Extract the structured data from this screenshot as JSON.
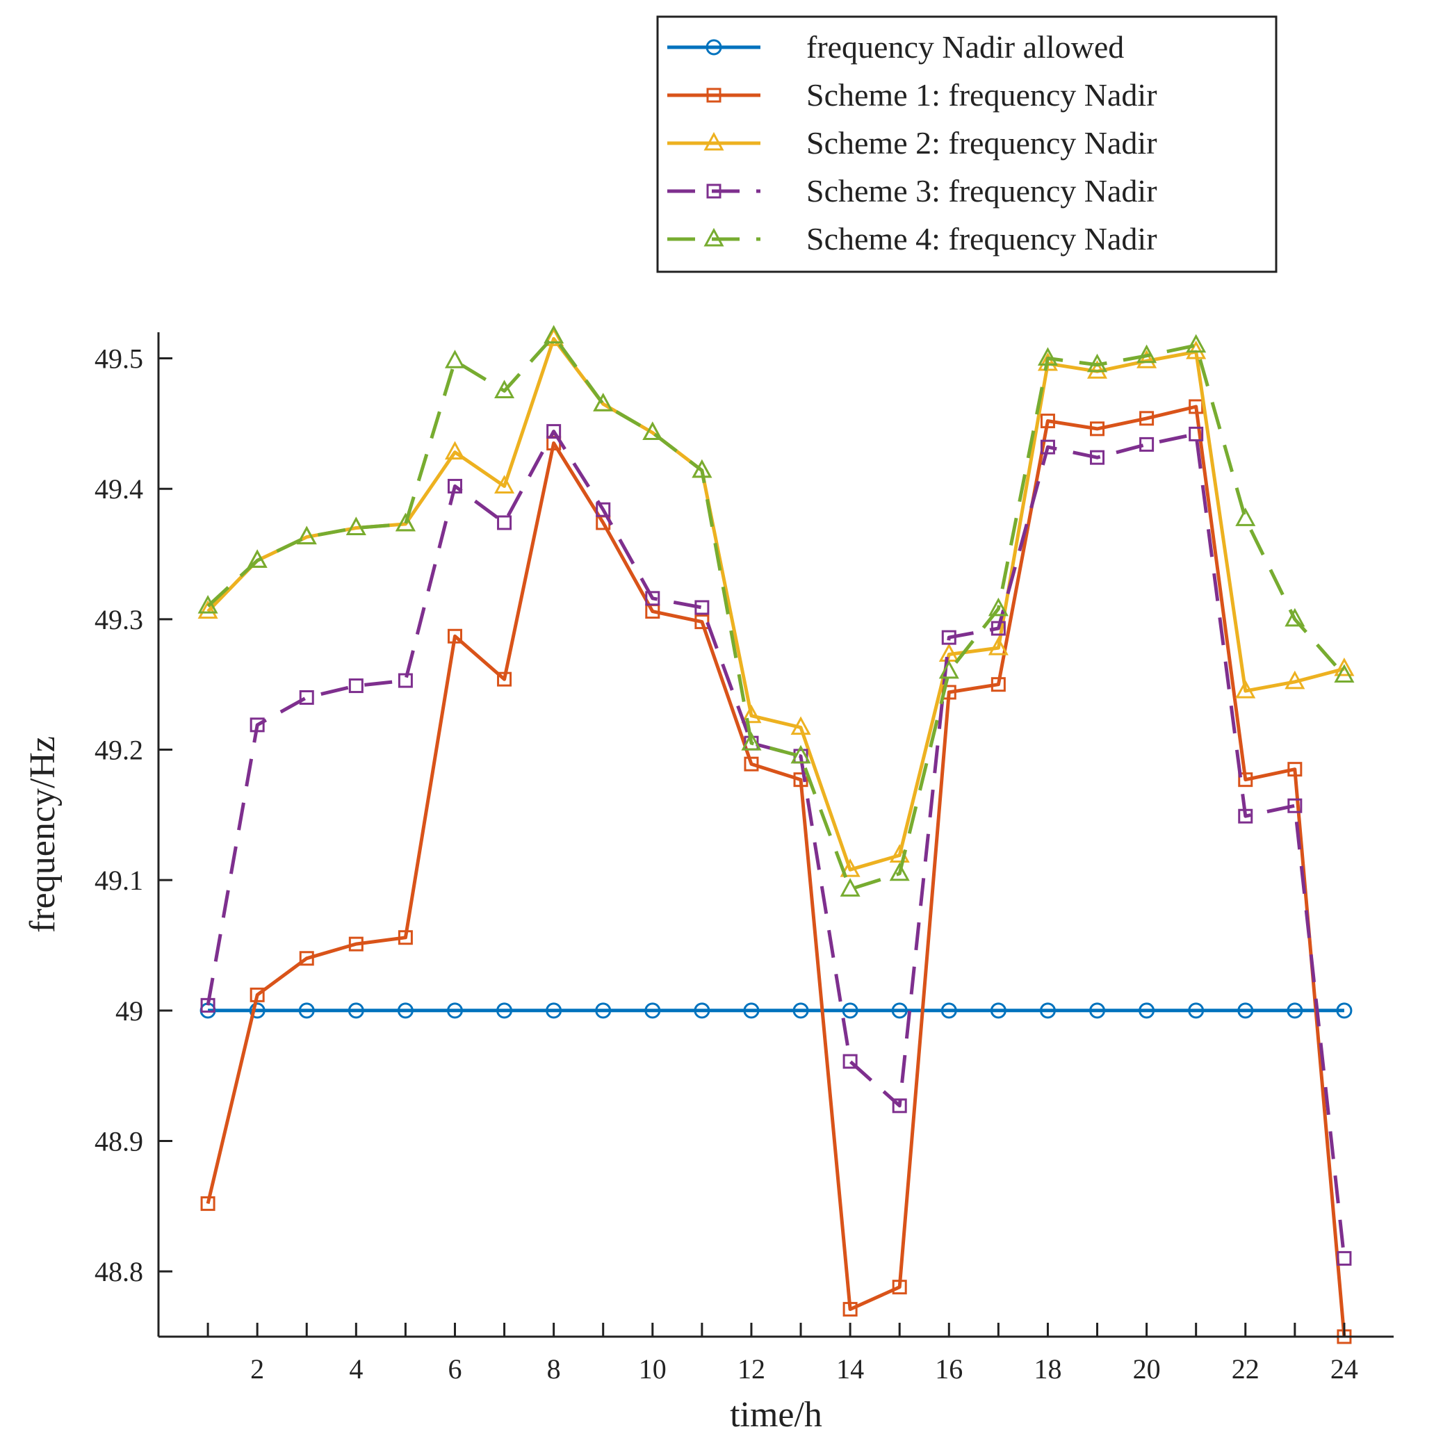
{
  "chart_data": {
    "type": "line",
    "title": "",
    "xlabel": "time/h",
    "ylabel": "frequency/Hz",
    "xlim": [
      0.0,
      25.0
    ],
    "ylim": [
      48.75,
      49.52
    ],
    "xticks": [
      2,
      4,
      6,
      8,
      10,
      12,
      14,
      16,
      18,
      20,
      22,
      24
    ],
    "xtick_labels": [
      "2",
      "4",
      "6",
      "8",
      "10",
      "12",
      "14",
      "16",
      "18",
      "20",
      "22",
      "24"
    ],
    "minor_xticks": [
      1,
      3,
      5,
      7,
      9,
      11,
      13,
      15,
      17,
      19,
      21,
      23
    ],
    "yticks": [
      48.8,
      48.9,
      49.0,
      49.1,
      49.2,
      49.3,
      49.4,
      49.5
    ],
    "ytick_labels": [
      "48.8",
      "48.9",
      "49",
      "49.1",
      "49.2",
      "49.3",
      "49.4",
      "49.5"
    ],
    "grid": false,
    "legend_position": "top-right",
    "x": [
      1,
      2,
      3,
      4,
      5,
      6,
      7,
      8,
      9,
      10,
      11,
      12,
      13,
      14,
      15,
      16,
      17,
      18,
      19,
      20,
      21,
      22,
      23,
      24
    ],
    "series": [
      {
        "name": "frequency Nadir allowed",
        "color": "#0072BD",
        "dash": "solid",
        "marker": "circle",
        "values": [
          49,
          49,
          49,
          49,
          49,
          49,
          49,
          49,
          49,
          49,
          49,
          49,
          49,
          49,
          49,
          49,
          49,
          49,
          49,
          49,
          49,
          49,
          49,
          49
        ]
      },
      {
        "name": "Scheme 1: frequency Nadir",
        "color": "#D95319",
        "dash": "solid",
        "marker": "square",
        "values": [
          48.852,
          49.012,
          49.04,
          49.051,
          49.056,
          49.287,
          49.254,
          49.435,
          49.374,
          49.306,
          49.298,
          49.189,
          49.177,
          48.771,
          48.788,
          49.244,
          49.25,
          49.452,
          49.446,
          49.454,
          49.463,
          49.177,
          49.185,
          48.75
        ]
      },
      {
        "name": "Scheme 2: frequency Nadir",
        "color": "#EDB120",
        "dash": "solid",
        "marker": "triangle",
        "values": [
          49.306,
          49.345,
          49.363,
          49.37,
          49.373,
          49.428,
          49.402,
          49.515,
          49.465,
          49.443,
          49.414,
          49.226,
          49.217,
          49.108,
          49.119,
          49.273,
          49.278,
          49.496,
          49.49,
          49.498,
          49.505,
          49.245,
          49.252,
          49.262
        ]
      },
      {
        "name": "Scheme 3: frequency Nadir",
        "color": "#7E2F8E",
        "dash": "dashed",
        "marker": "square",
        "values": [
          49.004,
          49.219,
          49.24,
          49.249,
          49.253,
          49.402,
          49.374,
          49.444,
          49.384,
          49.316,
          49.309,
          49.205,
          49.195,
          48.961,
          48.927,
          49.286,
          49.293,
          49.432,
          49.424,
          49.434,
          49.442,
          49.149,
          49.157,
          48.81
        ]
      },
      {
        "name": "Scheme 4: frequency Nadir",
        "color": "#77AC30",
        "dash": "dashed",
        "marker": "triangle",
        "values": [
          49.31,
          49.345,
          49.363,
          49.37,
          49.373,
          49.498,
          49.475,
          49.517,
          49.465,
          49.443,
          49.414,
          49.205,
          49.195,
          49.093,
          49.105,
          49.26,
          49.308,
          49.5,
          49.495,
          49.502,
          49.51,
          49.377,
          49.3,
          49.257
        ]
      }
    ]
  }
}
